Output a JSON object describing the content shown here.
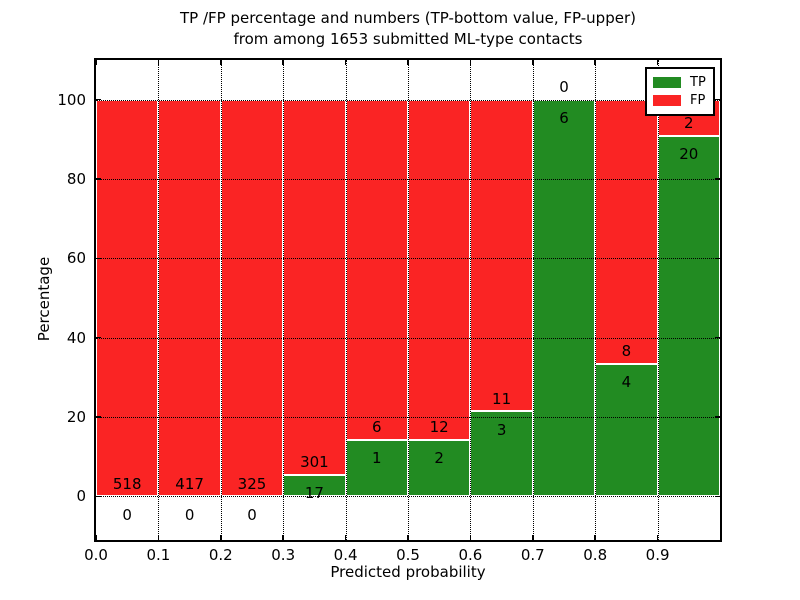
{
  "title": {
    "line1": "TP /FP percentage and numbers (TP-bottom value, FP-upper)",
    "line2": "from among 1653 submitted ML-type contacts"
  },
  "axes": {
    "xlabel": "Predicted probability",
    "ylabel": "Percentage",
    "x_tick_labels": [
      "0.0",
      "0.1",
      "0.2",
      "0.3",
      "0.4",
      "0.5",
      "0.6",
      "0.7",
      "0.8",
      "0.9"
    ],
    "x_tick_values": [
      0.0,
      0.1,
      0.2,
      0.3,
      0.4,
      0.5,
      0.6,
      0.7,
      0.8,
      0.9
    ],
    "y_tick_labels": [
      "0",
      "20",
      "40",
      "60",
      "80",
      "100"
    ],
    "y_tick_values": [
      0,
      20,
      40,
      60,
      80,
      100
    ]
  },
  "legend": {
    "position": "upper right",
    "items": [
      {
        "label": "TP",
        "color": "#228b22"
      },
      {
        "label": "FP",
        "color": "#fa2424"
      }
    ]
  },
  "chart_data": {
    "type": "bar",
    "stacked": true,
    "values_normalized_to_percent": true,
    "title": "TP /FP percentage and numbers (TP-bottom value, FP-upper) from among 1653 submitted ML-type contacts",
    "xlabel": "Predicted probability",
    "ylabel": "Percentage",
    "total_submitted_contacts": 1653,
    "bin_edges": [
      0.0,
      0.1,
      0.2,
      0.3,
      0.4,
      0.5,
      0.6,
      0.7,
      0.8,
      0.9,
      1.0
    ],
    "series": [
      {
        "name": "TP",
        "color": "#228b22",
        "counts": [
          0,
          0,
          0,
          17,
          1,
          2,
          3,
          6,
          4,
          20
        ]
      },
      {
        "name": "FP",
        "color": "#fa2424",
        "counts": [
          518,
          417,
          325,
          301,
          6,
          12,
          11,
          0,
          8,
          2
        ]
      }
    ],
    "tp_percent_of_bin": [
      0,
      0,
      0,
      5.3,
      14.3,
      14.3,
      21.4,
      100,
      33.3,
      90.9
    ],
    "xlim": [
      0,
      1
    ],
    "ylim": [
      -11,
      110
    ],
    "grid": "dotted",
    "bar_edge_color": "#ffffff",
    "background": "#ffffff"
  }
}
